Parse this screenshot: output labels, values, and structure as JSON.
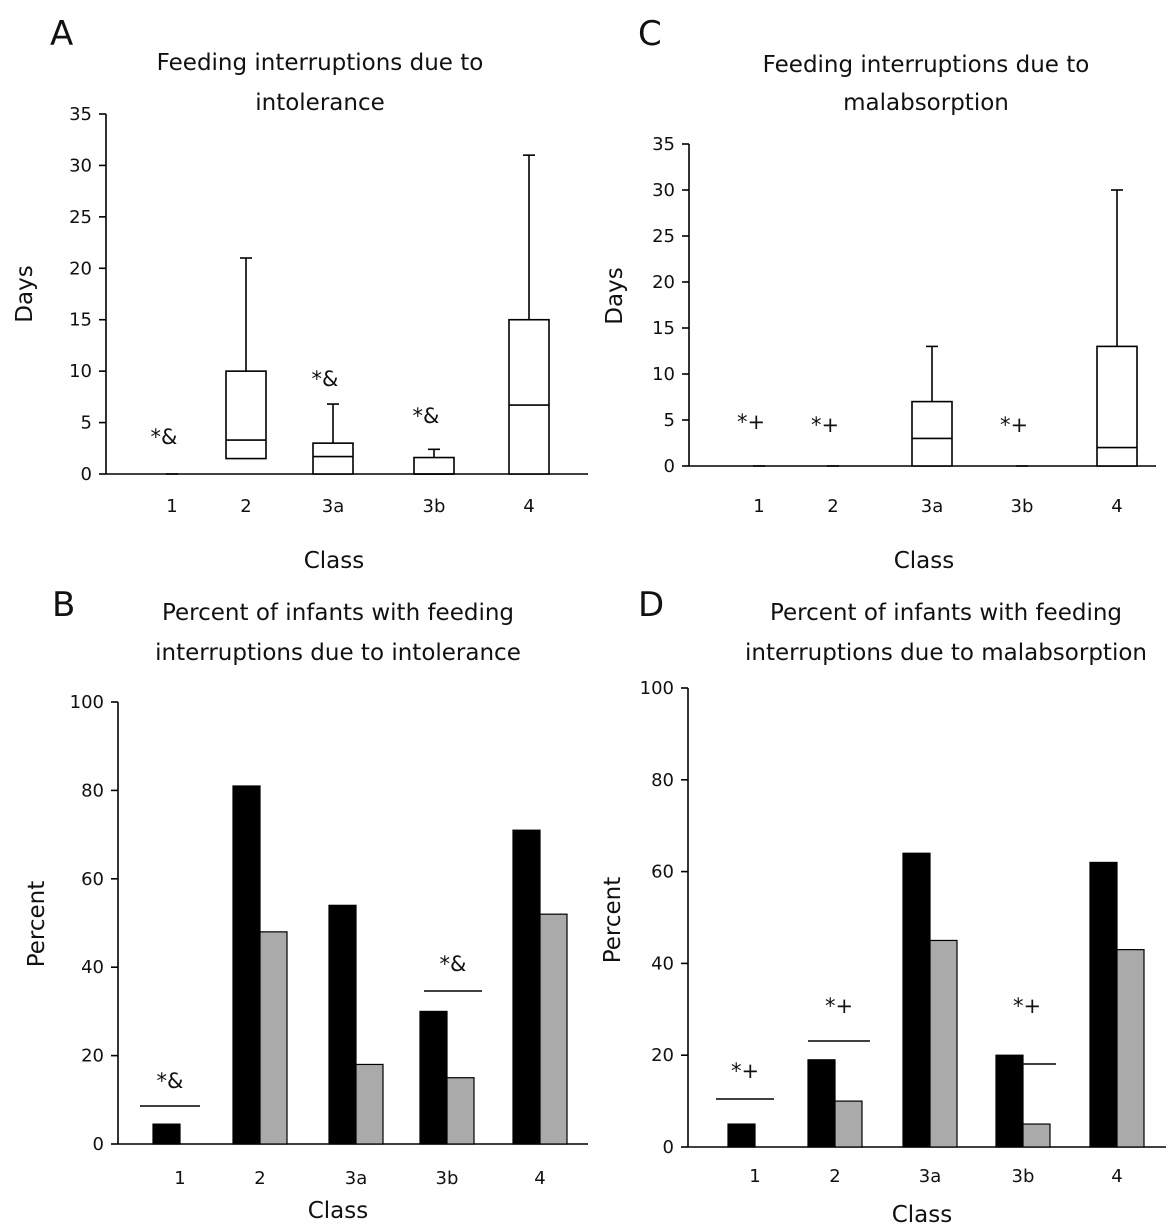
{
  "chart_data": [
    {
      "panel": "A",
      "type": "box",
      "title_lines": [
        "Feeding interruptions due to",
        "intolerance"
      ],
      "ylabel": "Days",
      "xlabel": "Class",
      "ylim": [
        0,
        35
      ],
      "yticks": [
        0,
        5,
        10,
        15,
        20,
        25,
        30,
        35
      ],
      "categories": [
        "1",
        "2",
        "3a",
        "3b",
        "4"
      ],
      "boxes": [
        {
          "min": 0,
          "q1": 0,
          "median": 0,
          "q3": 0,
          "max": 0
        },
        {
          "min": 1.5,
          "q1": 1.5,
          "median": 3.3,
          "q3": 10,
          "max": 21
        },
        {
          "min": 0,
          "q1": 0,
          "median": 1.7,
          "q3": 3,
          "max": 6.8
        },
        {
          "min": 0,
          "q1": 0,
          "median": 0,
          "q3": 1.6,
          "max": 2.4
        },
        {
          "min": 0,
          "q1": 0,
          "median": 6.7,
          "q3": 15,
          "max": 31
        }
      ],
      "annotations": [
        "*&",
        "",
        "*&",
        "*&",
        ""
      ]
    },
    {
      "panel": "B",
      "type": "bar",
      "title_lines": [
        "Percent of infants with feeding",
        "interruptions due to intolerance"
      ],
      "ylabel": "Percent",
      "xlabel": "Class",
      "ylim": [
        0,
        100
      ],
      "yticks": [
        0,
        20,
        40,
        60,
        80,
        100
      ],
      "categories": [
        "1",
        "2",
        "3a",
        "3b",
        "4"
      ],
      "series": [
        {
          "color": "#000000",
          "values": [
            4.5,
            81,
            54,
            30,
            71
          ]
        },
        {
          "color": "#aaaaaa",
          "values": [
            0,
            48,
            18,
            15,
            52
          ]
        }
      ],
      "annotations": [
        "*&",
        "",
        "",
        "*&",
        ""
      ]
    },
    {
      "panel": "C",
      "type": "box",
      "title_lines": [
        "Feeding interruptions due to",
        "malabsorption"
      ],
      "ylabel": "Days",
      "xlabel": "Class",
      "ylim": [
        0,
        35
      ],
      "yticks": [
        0,
        5,
        10,
        15,
        20,
        25,
        30,
        35
      ],
      "categories": [
        "1",
        "2",
        "3a",
        "3b",
        "4"
      ],
      "boxes": [
        {
          "min": 0,
          "q1": 0,
          "median": 0,
          "q3": 0,
          "max": 0
        },
        {
          "min": 0,
          "q1": 0,
          "median": 0,
          "q3": 0,
          "max": 0
        },
        {
          "min": 0,
          "q1": 0,
          "median": 3,
          "q3": 7,
          "max": 13
        },
        {
          "min": 0,
          "q1": 0,
          "median": 0,
          "q3": 0,
          "max": 0
        },
        {
          "min": 0,
          "q1": 0,
          "median": 2,
          "q3": 13,
          "max": 30
        }
      ],
      "annotations": [
        "*+",
        "*+",
        "",
        "*+",
        ""
      ]
    },
    {
      "panel": "D",
      "type": "bar",
      "title_lines": [
        "Percent of infants with feeding",
        "interruptions due to malabsorption"
      ],
      "ylabel": "Percent",
      "xlabel": "Class",
      "ylim": [
        0,
        100
      ],
      "yticks": [
        0,
        20,
        40,
        60,
        80,
        100
      ],
      "categories": [
        "1",
        "2",
        "3a",
        "3b",
        "4"
      ],
      "series": [
        {
          "color": "#000000",
          "values": [
            5,
            19,
            64,
            20,
            62
          ]
        },
        {
          "color": "#aaaaaa",
          "values": [
            0,
            10,
            45,
            5,
            43
          ]
        }
      ],
      "annotations": [
        "*+",
        "*+",
        "",
        "*+",
        ""
      ]
    }
  ]
}
